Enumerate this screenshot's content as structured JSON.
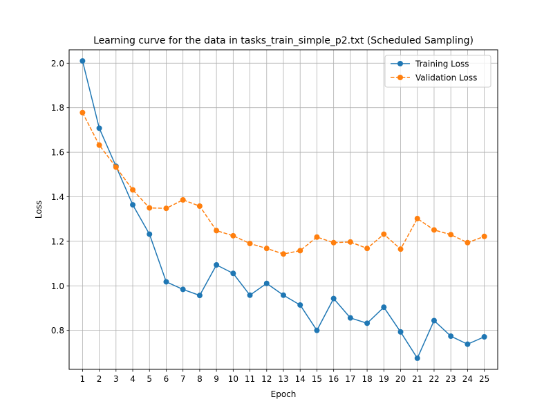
{
  "chart_data": {
    "type": "line",
    "title": "Learning curve for the data in tasks_train_simple_p2.txt (Scheduled Sampling)",
    "xlabel": "Epoch",
    "ylabel": "Loss",
    "x": [
      1,
      2,
      3,
      4,
      5,
      6,
      7,
      8,
      9,
      10,
      11,
      12,
      13,
      14,
      15,
      16,
      17,
      18,
      19,
      20,
      21,
      22,
      23,
      24,
      25
    ],
    "x_tick_labels": [
      "1",
      "2",
      "3",
      "4",
      "5",
      "6",
      "7",
      "8",
      "9",
      "10",
      "11",
      "12",
      "13",
      "14",
      "15",
      "16",
      "17",
      "18",
      "19",
      "20",
      "21",
      "22",
      "23",
      "24",
      "25"
    ],
    "xlim": [
      0.2,
      25.8
    ],
    "ylim": [
      0.625,
      2.06
    ],
    "y_ticks": [
      0.8,
      1.0,
      1.2,
      1.4,
      1.6,
      1.8,
      2.0
    ],
    "y_tick_labels": [
      "0.8",
      "1.0",
      "1.2",
      "1.4",
      "1.6",
      "1.8",
      "2.0"
    ],
    "grid": true,
    "legend_position": "top-right",
    "series": [
      {
        "name": "Training Loss",
        "color": "#1f77b4",
        "line_style": "solid",
        "marker": "circle",
        "values": [
          2.01,
          1.708,
          1.537,
          1.364,
          1.232,
          1.018,
          0.984,
          0.957,
          1.094,
          1.056,
          0.958,
          1.011,
          0.958,
          0.914,
          0.8,
          0.943,
          0.856,
          0.832,
          0.904,
          0.793,
          0.675,
          0.844,
          0.774,
          0.738,
          0.771
        ]
      },
      {
        "name": "Validation Loss",
        "color": "#ff7f0e",
        "line_style": "dashed",
        "marker": "circle",
        "values": [
          1.778,
          1.632,
          1.533,
          1.431,
          1.35,
          1.348,
          1.386,
          1.358,
          1.248,
          1.225,
          1.19,
          1.168,
          1.143,
          1.158,
          1.219,
          1.194,
          1.197,
          1.168,
          1.232,
          1.165,
          1.302,
          1.251,
          1.23,
          1.194,
          1.222
        ]
      }
    ]
  }
}
